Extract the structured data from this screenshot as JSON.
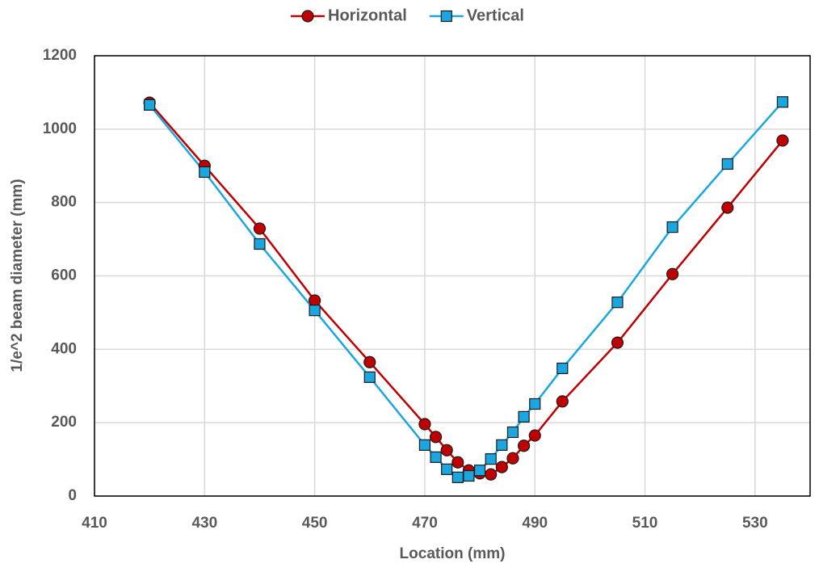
{
  "chart_data": {
    "type": "line",
    "x": [
      420,
      430,
      440,
      450,
      460,
      470,
      472,
      474,
      476,
      478,
      480,
      482,
      484,
      486,
      488,
      490,
      495,
      505,
      515,
      525,
      535
    ],
    "series": [
      {
        "name": "Horizontal",
        "color": "#c00000",
        "marker": "circle",
        "values": [
          1072,
          900,
          729,
          533,
          365,
          196,
          161,
          125,
          92,
          70,
          62,
          59,
          79,
          103,
          137,
          165,
          258,
          418,
          605,
          786,
          969
        ]
      },
      {
        "name": "Vertical",
        "color": "#1aa7e0",
        "marker": "square",
        "values": [
          1066,
          883,
          687,
          506,
          324,
          139,
          106,
          73,
          51,
          55,
          70,
          101,
          139,
          174,
          216,
          251,
          348,
          528,
          733,
          905,
          1074
        ]
      }
    ],
    "xlabel": "Location (mm)",
    "ylabel": "1/e^2 beam diameter (mm)",
    "xlim": [
      410,
      540
    ],
    "xticks": [
      410,
      430,
      450,
      470,
      490,
      510,
      530
    ],
    "ylim": [
      0,
      1200
    ],
    "yticks": [
      0,
      200,
      400,
      600,
      800,
      1000,
      1200
    ],
    "grid": true,
    "legend": "top"
  }
}
